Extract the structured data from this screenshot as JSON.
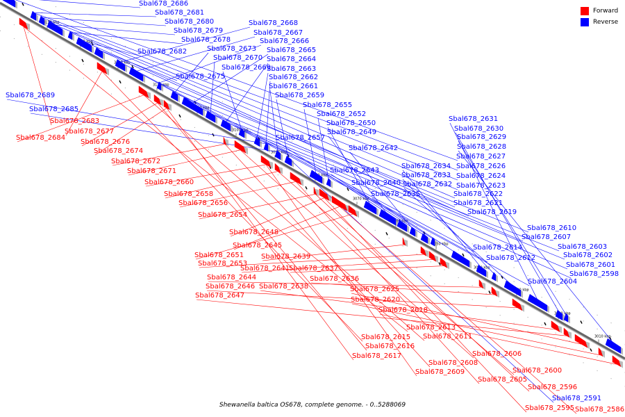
{
  "legend": {
    "forward": {
      "label": "Forward",
      "color": "#ff0000"
    },
    "reverse": {
      "label": "Reverse",
      "color": "#0000ff"
    }
  },
  "colors": {
    "forward": "#ff0000",
    "reverse": "#0000ff",
    "axis": "#666666"
  },
  "caption": "Shewanella baltica OS678, complete genome. - 0..5288069",
  "axis_ticks": [
    "3150 kbp",
    "3140 kbp",
    "3130 kbp",
    "3120 kbp",
    "3110 kbp",
    "3100 kbp",
    "3090 kbp",
    "3080 kbp",
    "3070 kbp",
    "3060 kbp",
    "3050 kbp",
    "3040 kbp",
    "3030 kbp",
    "3020 kbp",
    "3010 kbp"
  ],
  "reverse_genes": [
    "Sbal678_2686",
    "Sbal678_2681",
    "Sbal678_2680",
    "Sbal678_2679",
    "Sbal678_2678",
    "Sbal678_2682",
    "Sbal678_2675",
    "Sbal678_2668",
    "Sbal678_2667",
    "Sbal678_2666",
    "Sbal678_2673",
    "Sbal678_2665",
    "Sbal678_2670",
    "Sbal678_2664",
    "Sbal678_2669",
    "Sbal678_2663",
    "Sbal678_2662",
    "Sbal678_2661",
    "Sbal678_2659",
    "Sbal678_2655",
    "Sbal678_2652",
    "Sbal678_2650",
    "Sbal678_2649",
    "Sbal678_2657",
    "Sbal678_2642",
    "Sbal678_2643",
    "Sbal678_2640",
    "Sbal678_2635",
    "Sbal678_2634",
    "Sbal678_2633",
    "Sbal678_2632",
    "Sbal678_2631",
    "Sbal678_2630",
    "Sbal678_2629",
    "Sbal678_2628",
    "Sbal678_2627",
    "Sbal678_2626",
    "Sbal678_2624",
    "Sbal678_2623",
    "Sbal678_2622",
    "Sbal678_2621",
    "Sbal678_2619",
    "Sbal678_2614",
    "Sbal678_2612",
    "Sbal678_2610",
    "Sbal678_2607",
    "Sbal678_2604",
    "Sbal678_2603",
    "Sbal678_2602",
    "Sbal678_2601",
    "Sbal678_2598",
    "Sbal678_2689",
    "Sbal678_2685",
    "Sbal678_2591"
  ],
  "forward_genes": [
    "Sbal678_2683",
    "Sbal678_2677",
    "Sbal678_2684",
    "Sbal678_2676",
    "Sbal678_2674",
    "Sbal678_2672",
    "Sbal678_2671",
    "Sbal678_2660",
    "Sbal678_2658",
    "Sbal678_2656",
    "Sbal678_2654",
    "Sbal678_2648",
    "Sbal678_2645",
    "Sbal678_2651",
    "Sbal678_2639",
    "Sbal678_2653",
    "Sbal678_2641",
    "Sbal678_2637",
    "Sbal678_2644",
    "Sbal678_2636",
    "Sbal678_2646",
    "Sbal678_2638",
    "Sbal678_2647",
    "Sbal678_2625",
    "Sbal678_2620",
    "Sbal678_2618",
    "Sbal678_2613",
    "Sbal678_2615",
    "Sbal678_2611",
    "Sbal678_2616",
    "Sbal678_2617",
    "Sbal678_2608",
    "Sbal678_2606",
    "Sbal678_2609",
    "Sbal678_2600",
    "Sbal678_2605",
    "Sbal678_2596",
    "Sbal678_2595",
    "Sbal678_2586"
  ]
}
